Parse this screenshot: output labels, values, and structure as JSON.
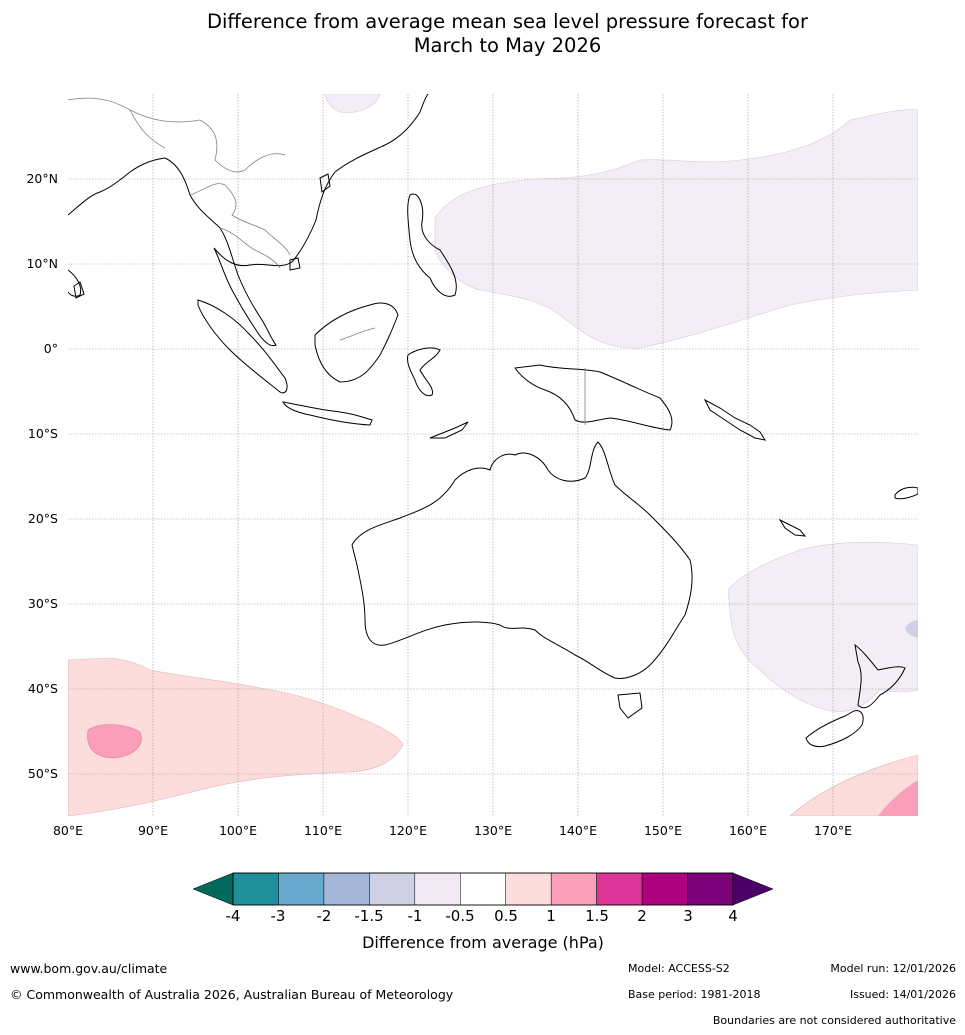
{
  "title": {
    "line1": "Difference from average mean sea level pressure forecast for",
    "line2": "March to May 2026"
  },
  "map": {
    "latitude_labels": [
      "20°N",
      "10°N",
      "0°",
      "10°S",
      "20°S",
      "30°S",
      "40°S",
      "50°S"
    ],
    "longitude_labels": [
      "80°E",
      "90°E",
      "100°E",
      "110°E",
      "120°E",
      "130°E",
      "140°E",
      "150°E",
      "160°E",
      "170°E"
    ],
    "land_outline_color": "#000000",
    "border_color": "#808080",
    "gridline_color": "#999999"
  },
  "colorbar": {
    "title": "Difference from average (hPa)",
    "tick_labels": [
      "-4",
      "-3",
      "-2",
      "-1.5",
      "-1",
      "-0.5",
      "0.5",
      "1",
      "1.5",
      "2",
      "3",
      "4"
    ],
    "low_extend_color": "#00695c",
    "high_extend_color": "#4a0068",
    "colors": [
      "#1f8f99",
      "#67a9cf",
      "#a3b6d8",
      "#cfd0e4",
      "#f1e8f3",
      "#ffffff",
      "#fddcdc",
      "#f99fb9",
      "#dd3497",
      "#ae017e",
      "#7a0177"
    ]
  },
  "footer": {
    "website": "www.bom.gov.au/climate",
    "copyright": "© Commonwealth of Australia 2026, Australian Bureau of Meteorology",
    "model": "Model: ACCESS-S2",
    "base_period": "Base period: 1981-2018",
    "model_run": "Model run: 12/01/2026",
    "issued": "Issued: 14/01/2026",
    "disclaimer": "Boundaries are not considered authoritative"
  }
}
